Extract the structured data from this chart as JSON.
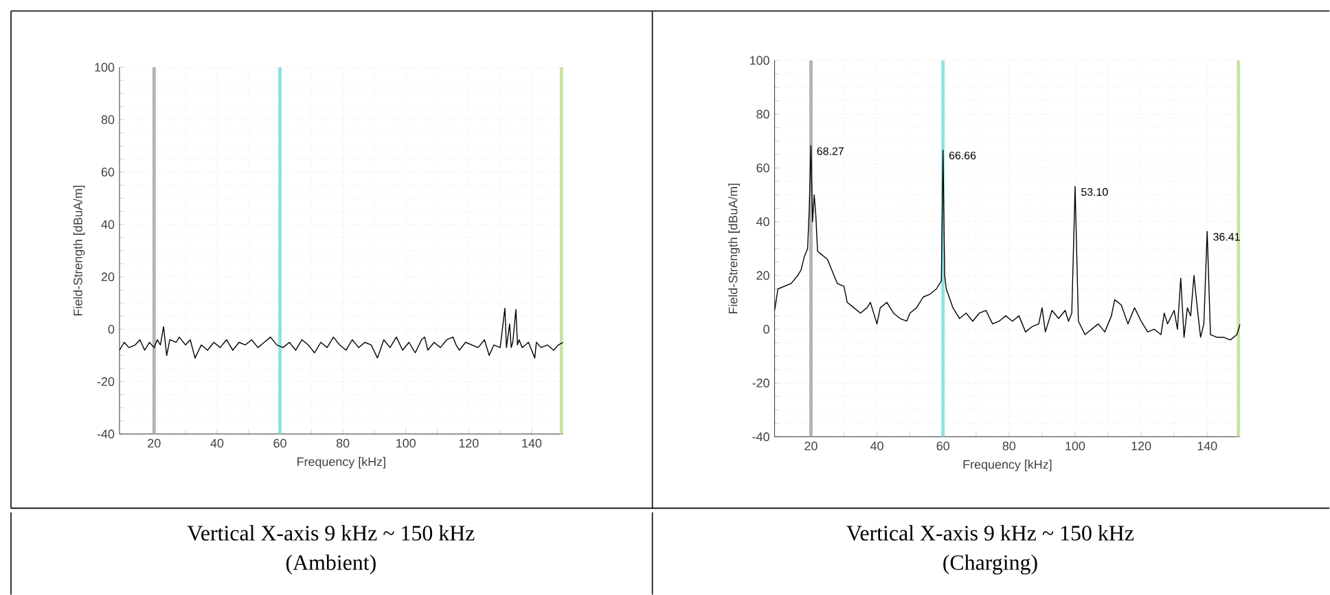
{
  "chart_data": [
    {
      "type": "line",
      "xlabel": "Frequency [kHz]",
      "ylabel": "Field-Strength [dBuA/m]",
      "xlim": [
        9,
        150
      ],
      "ylim": [
        -40,
        100
      ],
      "xticks": [
        20,
        40,
        60,
        80,
        100,
        120,
        140
      ],
      "yticks": [
        -40,
        -20,
        0,
        20,
        40,
        60,
        80,
        100
      ],
      "grid": true,
      "marker": "none",
      "line_style": "solid",
      "ref_lines": [
        {
          "axis": "x",
          "value": 20,
          "color": "#b4b4b4"
        },
        {
          "axis": "x",
          "value": 60,
          "color": "#90e2e2"
        },
        {
          "axis": "x",
          "value": 149.5,
          "color": "#c8e2a4"
        }
      ],
      "annotations": [
        "Vertical X-axis 9 kHz ~ 150 kHz",
        "(Ambient)"
      ],
      "series": [
        {
          "color": "#000000",
          "x": [
            9,
            10.5,
            12,
            14,
            15.5,
            17,
            18.5,
            20,
            21,
            22,
            23,
            24,
            25,
            27,
            28,
            30,
            31.5,
            33,
            35,
            37,
            39,
            41,
            43,
            45,
            47,
            49,
            51,
            53,
            55,
            57,
            59,
            61,
            63,
            65,
            67,
            69,
            71,
            73,
            75,
            77,
            79,
            81,
            83,
            85,
            87,
            89,
            91,
            93,
            95,
            97,
            99,
            101,
            103,
            105,
            106,
            107,
            109,
            111,
            113,
            115,
            116,
            117,
            119,
            121,
            123,
            125,
            126.5,
            128,
            130,
            131.5,
            132,
            133,
            133.5,
            134,
            135,
            135.5,
            136,
            137,
            139,
            141,
            141.5,
            143,
            145,
            147,
            148.5,
            150
          ],
          "values": [
            -8,
            -5,
            -7,
            -6,
            -4,
            -8,
            -5,
            -7,
            -4,
            -6,
            1,
            -10,
            -4,
            -5,
            -3,
            -6,
            -4,
            -11,
            -6,
            -8,
            -5,
            -7,
            -4,
            -8,
            -5,
            -6,
            -4,
            -7,
            -5,
            -3,
            -6,
            -7,
            -5,
            -8,
            -4,
            -6,
            -9,
            -5,
            -7,
            -3,
            -6,
            -8,
            -4,
            -7,
            -5,
            -6,
            -11,
            -4,
            -7,
            -3,
            -8,
            -5,
            -9,
            -4,
            -3,
            -8,
            -5,
            -7,
            -4,
            -3,
            -6,
            -8,
            -5,
            -6,
            -7,
            -4,
            -10,
            -6,
            -7,
            8,
            -7,
            2,
            -7,
            -5,
            7.5,
            -6,
            -4,
            -7,
            -5,
            -11,
            -5,
            -7,
            -6,
            -8,
            -6,
            -5
          ]
        }
      ]
    },
    {
      "type": "line",
      "xlabel": "Frequency [kHz]",
      "ylabel": "Field-Strength [dBuA/m]",
      "xlim": [
        9,
        150
      ],
      "ylim": [
        -40,
        100
      ],
      "xticks": [
        20,
        40,
        60,
        80,
        100,
        120,
        140
      ],
      "yticks": [
        -40,
        -20,
        0,
        20,
        40,
        60,
        80,
        100
      ],
      "grid": true,
      "marker": "none",
      "line_style": "solid",
      "ref_lines": [
        {
          "axis": "x",
          "value": 20,
          "color": "#b4b4b4"
        },
        {
          "axis": "x",
          "value": 60,
          "color": "#90e2e2"
        },
        {
          "axis": "x",
          "value": 149.5,
          "color": "#c8e2a4"
        }
      ],
      "annotations": [
        "Vertical X-axis 9 kHz ~ 150 kHz",
        "(Charging)",
        {
          "text": "68.27",
          "x": 20,
          "y": 68.27
        },
        {
          "text": "66.66",
          "x": 60,
          "y": 66.66
        },
        {
          "text": "53.10",
          "x": 100,
          "y": 53.1
        },
        {
          "text": "36.41",
          "x": 140,
          "y": 36.41
        }
      ],
      "series": [
        {
          "color": "#000000",
          "x": [
            9,
            10,
            12,
            14,
            16,
            17,
            18,
            19,
            19.5,
            20,
            20.5,
            21,
            21.5,
            22,
            23,
            25,
            27,
            28,
            30,
            31,
            33,
            35,
            37,
            38,
            40,
            41,
            43,
            45,
            47,
            49,
            50,
            52,
            54,
            56,
            58,
            59.5,
            60,
            60.5,
            61,
            63,
            65,
            67,
            69,
            71,
            73,
            75,
            77,
            79,
            81,
            83,
            85,
            87,
            89,
            90,
            91,
            93,
            95,
            97,
            98,
            99,
            100,
            101,
            103,
            105,
            107,
            109,
            111,
            112,
            114,
            116,
            118,
            120,
            122,
            124,
            126,
            127,
            128,
            130,
            131,
            132,
            133,
            134,
            135,
            136,
            137,
            138,
            139,
            140,
            141,
            143,
            145,
            147,
            149,
            150
          ],
          "values": [
            7,
            15,
            16,
            17,
            20,
            22,
            27,
            30,
            45,
            68.27,
            40,
            50,
            42,
            29,
            28,
            26,
            20,
            17,
            16,
            10,
            8,
            6,
            8,
            10,
            2,
            8,
            10,
            6,
            4,
            3,
            6,
            8,
            12,
            13,
            15,
            18,
            66.66,
            20,
            15,
            8,
            4,
            6,
            3,
            6,
            7,
            2,
            3,
            5,
            3,
            5,
            -1,
            1,
            2,
            8,
            -1,
            7,
            4,
            7,
            3,
            6,
            53.1,
            3,
            -2,
            0,
            2,
            -1,
            5,
            11,
            9,
            2,
            8,
            3,
            -1,
            0,
            -2,
            6,
            2,
            7,
            0,
            19,
            -3,
            8,
            5,
            20,
            8,
            -3,
            2,
            36.41,
            -2,
            -3,
            -3,
            -4,
            -2,
            2
          ]
        }
      ]
    }
  ]
}
